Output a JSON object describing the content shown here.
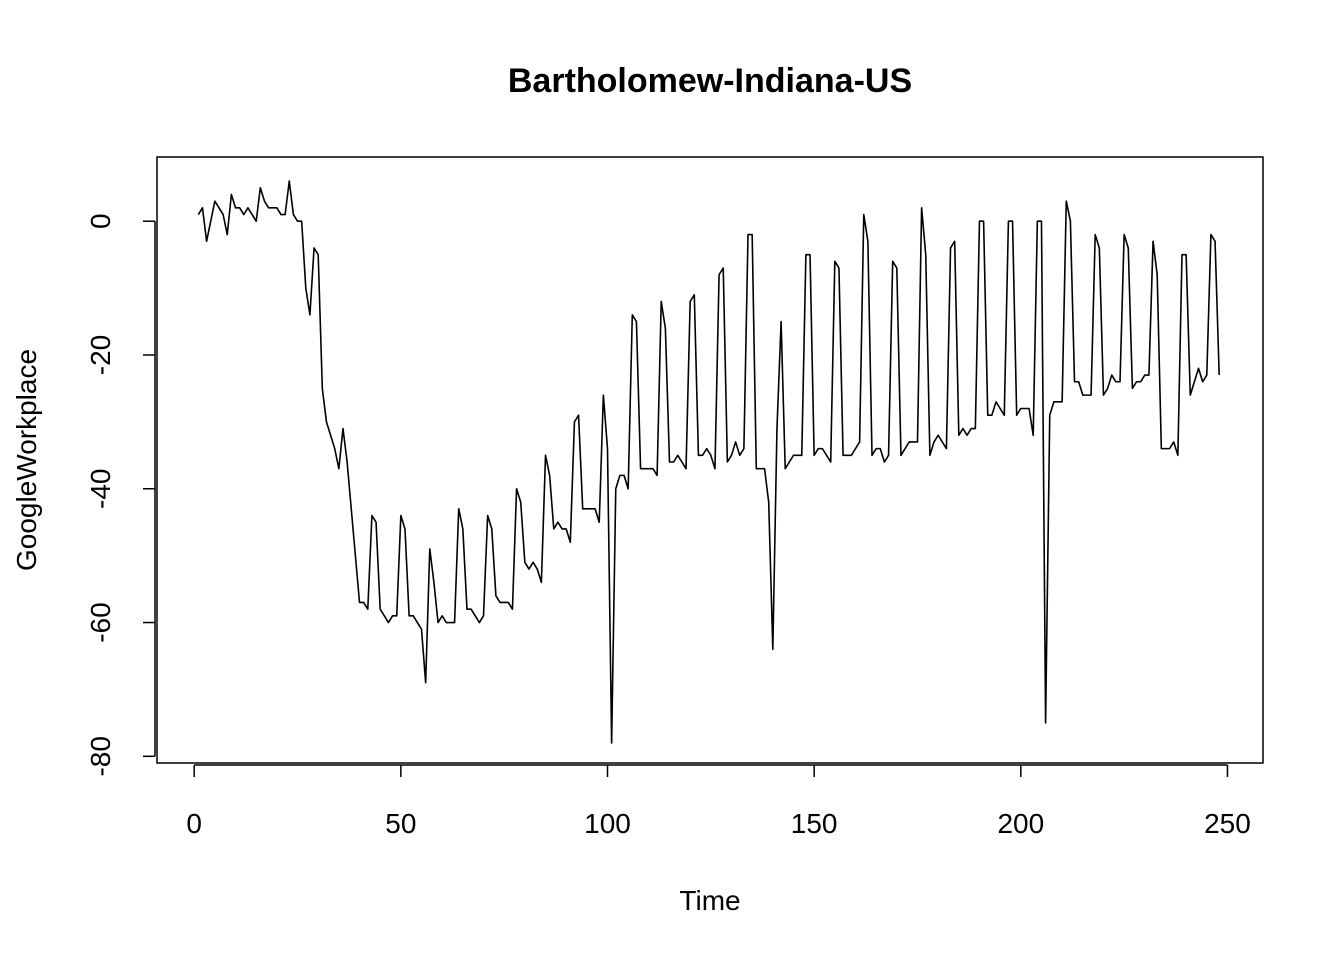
{
  "chart_data": {
    "type": "line",
    "title": "Bartholomew-Indiana-US",
    "xlabel": "Time",
    "ylabel": "GoogleWorkplace",
    "xlim": [
      -9,
      258.6
    ],
    "ylim": [
      -81,
      9.6
    ],
    "x_ticks": [
      0,
      50,
      100,
      150,
      200,
      250
    ],
    "y_ticks": [
      0,
      -20,
      -40,
      -60,
      -80
    ],
    "x_tick_labels": [
      "0",
      "50",
      "100",
      "150",
      "200",
      "250"
    ],
    "y_tick_labels": [
      "0",
      "-20",
      "-40",
      "-60",
      "-80"
    ],
    "grid": false,
    "legend": "none",
    "line_color": "#000000",
    "series": [
      {
        "x": [
          1,
          2,
          3,
          4,
          5,
          6,
          7,
          8,
          9,
          10,
          11,
          12,
          13,
          14,
          15,
          16,
          17,
          18,
          19,
          20,
          21,
          22,
          23,
          24,
          25,
          26,
          27,
          28,
          29,
          30,
          31,
          32,
          33,
          34,
          35,
          36,
          37,
          38,
          39,
          40,
          41,
          42,
          43,
          44,
          45,
          46,
          47,
          48,
          49,
          50,
          51,
          52,
          53,
          54,
          55,
          56,
          57,
          58,
          59,
          60,
          61,
          62,
          63,
          64,
          65,
          66,
          67,
          68,
          69,
          70,
          71,
          72,
          73,
          74,
          75,
          76,
          77,
          78,
          79,
          80,
          81,
          82,
          83,
          84,
          85,
          86,
          87,
          88,
          89,
          90,
          91,
          92,
          93,
          94,
          95,
          96,
          97,
          98,
          99,
          100,
          101,
          102,
          103,
          104,
          105,
          106,
          107,
          108,
          109,
          110,
          111,
          112,
          113,
          114,
          115,
          116,
          117,
          118,
          119,
          120,
          121,
          122,
          123,
          124,
          125,
          126,
          127,
          128,
          129,
          130,
          131,
          132,
          133,
          134,
          135,
          136,
          137,
          138,
          139,
          140,
          141,
          142,
          143,
          144,
          145,
          146,
          147,
          148,
          149,
          150,
          151,
          152,
          153,
          154,
          155,
          156,
          157,
          158,
          159,
          160,
          161,
          162,
          163,
          164,
          165,
          166,
          167,
          168,
          169,
          170,
          171,
          172,
          173,
          174,
          175,
          176,
          177,
          178,
          179,
          180,
          181,
          182,
          183,
          184,
          185,
          186,
          187,
          188,
          189,
          190,
          191,
          192,
          193,
          194,
          195,
          196,
          197,
          198,
          199,
          200,
          201,
          202,
          203,
          204,
          205,
          206,
          207,
          208,
          209,
          210,
          211,
          212,
          213,
          214,
          215,
          216,
          217,
          218,
          219,
          220,
          221,
          222,
          223,
          224,
          225,
          226,
          227,
          228,
          229,
          230,
          231,
          232,
          233,
          234,
          235,
          236,
          237,
          238,
          239,
          240,
          241,
          242,
          243,
          244,
          245,
          246,
          247,
          248
        ],
        "values": [
          1,
          2,
          -3,
          0,
          3,
          2,
          1,
          -2,
          4,
          2,
          2,
          1,
          2,
          1,
          0,
          5,
          3,
          2,
          2,
          2,
          1,
          1,
          6,
          1,
          0,
          0,
          -10,
          -14,
          -4,
          -5,
          -25,
          -30,
          -32,
          -34,
          -37,
          -31,
          -36,
          -43,
          -50,
          -57,
          -57,
          -58,
          -44,
          -45,
          -58,
          -59,
          -60,
          -59,
          -59,
          -44,
          -46,
          -59,
          -59,
          -60,
          -61,
          -69,
          -49,
          -54,
          -60,
          -59,
          -60,
          -60,
          -60,
          -43,
          -46,
          -58,
          -58,
          -59,
          -60,
          -59,
          -44,
          -46,
          -56,
          -57,
          -57,
          -57,
          -58,
          -40,
          -42,
          -51,
          -52,
          -51,
          -52,
          -54,
          -35,
          -38,
          -46,
          -45,
          -46,
          -46,
          -48,
          -30,
          -29,
          -43,
          -43,
          -43,
          -43,
          -45,
          -26,
          -34,
          -78,
          -40,
          -38,
          -38,
          -40,
          -14,
          -15,
          -37,
          -37,
          -37,
          -37,
          -38,
          -12,
          -16,
          -36,
          -36,
          -35,
          -36,
          -37,
          -12,
          -11,
          -35,
          -35,
          -34,
          -35,
          -37,
          -8,
          -7,
          -36,
          -35,
          -33,
          -35,
          -34,
          -2,
          -2,
          -37,
          -37,
          -37,
          -42,
          -64,
          -31,
          -15,
          -37,
          -36,
          -35,
          -35,
          -35,
          -5,
          -5,
          -35,
          -34,
          -34,
          -35,
          -36,
          -6,
          -7,
          -35,
          -35,
          -35,
          -34,
          -33,
          1,
          -3,
          -35,
          -34,
          -34,
          -36,
          -35,
          -6,
          -7,
          -35,
          -34,
          -33,
          -33,
          -33,
          2,
          -5,
          -35,
          -33,
          -32,
          -33,
          -34,
          -4,
          -3,
          -32,
          -31,
          -32,
          -31,
          -31,
          0,
          0,
          -29,
          -29,
          -27,
          -28,
          -29,
          0,
          0,
          -29,
          -28,
          -28,
          -28,
          -32,
          0,
          0,
          -75,
          -29,
          -27,
          -27,
          -27,
          3,
          0,
          -24,
          -24,
          -26,
          -26,
          -26,
          -2,
          -4,
          -26,
          -25,
          -23,
          -24,
          -24,
          -2,
          -4,
          -25,
          -24,
          -24,
          -23,
          -23,
          -3,
          -8,
          -34,
          -34,
          -34,
          -33,
          -35,
          -5,
          -5,
          -26,
          -24,
          -22,
          -24,
          -23,
          -2,
          -3,
          -23
        ]
      }
    ]
  }
}
